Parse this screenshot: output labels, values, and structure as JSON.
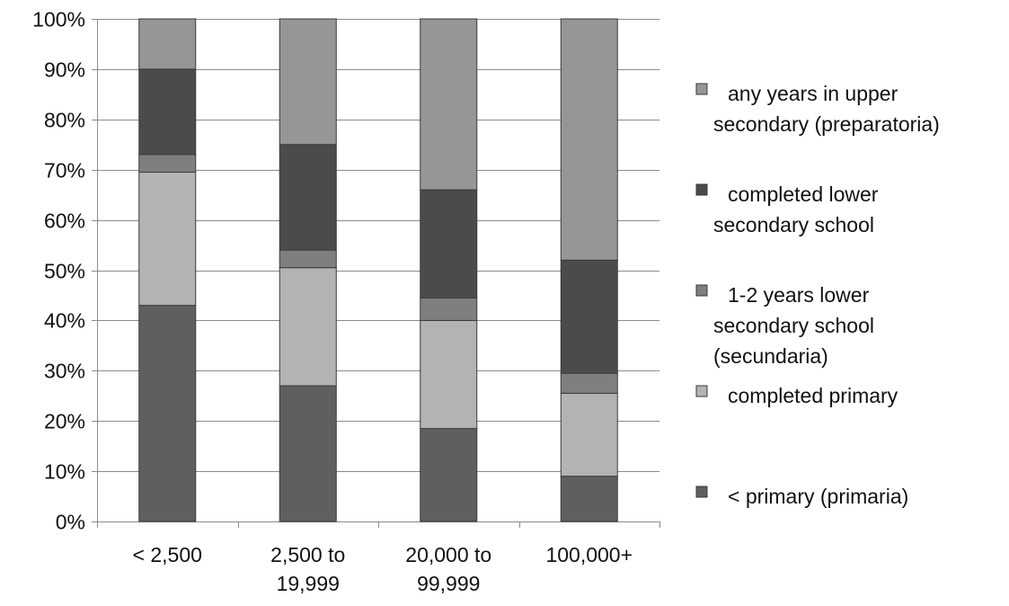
{
  "chart_data": {
    "type": "bar",
    "stacked": true,
    "percent": true,
    "categories": [
      "< 2,500",
      "2,500 to\n19,999",
      "20,000 to\n99,999",
      "100,000+"
    ],
    "ylim": [
      0,
      100
    ],
    "yticks": [
      0,
      10,
      20,
      30,
      40,
      50,
      60,
      70,
      80,
      90,
      100
    ],
    "ytick_labels": [
      "0%",
      "10%",
      "20%",
      "30%",
      "40%",
      "50%",
      "60%",
      "70%",
      "80%",
      "90%",
      "100%"
    ],
    "grid": true,
    "legend_position": "right",
    "series": [
      {
        "name": "< primary (primaria)",
        "color": "#5f5f5f",
        "values": [
          43,
          27,
          18.5,
          9
        ]
      },
      {
        "name": "completed primary",
        "color": "#b3b3b3",
        "values": [
          26.5,
          23.5,
          21.5,
          16.5
        ]
      },
      {
        "name": "1-2 years lower secondary school (secundaria)",
        "color": "#7f7f7f",
        "values": [
          3.5,
          3.5,
          4.5,
          4
        ]
      },
      {
        "name": "completed lower secondary school",
        "color": "#4b4b4b",
        "values": [
          17,
          21,
          21.5,
          22.5
        ]
      },
      {
        "name": "any years in upper secondary (preparatoria)",
        "color": "#969696",
        "values": [
          10,
          25,
          34,
          48
        ]
      }
    ],
    "legend_order": [
      4,
      3,
      2,
      1,
      0
    ],
    "legend_labels": [
      [
        "any years in upper",
        "secondary (preparatoria)"
      ],
      [
        "completed lower",
        "secondary school"
      ],
      [
        "1-2 years lower",
        "secondary school",
        "(secundaria)"
      ],
      [
        "completed primary"
      ],
      [
        "< primary (primaria)"
      ]
    ]
  }
}
